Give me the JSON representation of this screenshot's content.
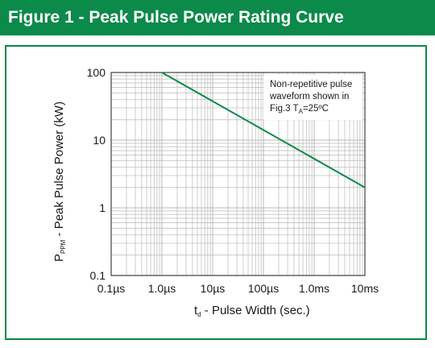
{
  "header": {
    "title": "Figure 1 - Peak Pulse Power Rating Curve"
  },
  "colors": {
    "brand": "#0b8a4a",
    "curve": "#0b8a4a",
    "grid": "#b8b8b8"
  },
  "chart_data": {
    "type": "line",
    "title": "",
    "xlabel": {
      "main": "t",
      "sub": "d",
      "rest": " - Pulse Width (sec.)"
    },
    "ylabel": {
      "main": "P",
      "sub": "PPM",
      "rest": " - Peak Pulse Power (kW)"
    },
    "x_scale": "log",
    "y_scale": "log",
    "xlim": [
      "0.1µs",
      "10ms"
    ],
    "ylim": [
      0.1,
      100
    ],
    "x_ticks": [
      "0.1µs",
      "1.0µs",
      "10µs",
      "100µs",
      "1.0ms",
      "10ms"
    ],
    "y_ticks": [
      "100",
      "10",
      "1",
      "0.1"
    ],
    "grid": true,
    "annotation": {
      "line1": "Non-repetitive pulse",
      "line2": "waveform shown in",
      "line3_pre": "Fig.3 T",
      "line3_sub": "A",
      "line3_post": "=25ºC"
    },
    "series": [
      {
        "x": [
          "1.0µs",
          "10ms"
        ],
        "y": [
          100,
          2
        ]
      }
    ]
  }
}
